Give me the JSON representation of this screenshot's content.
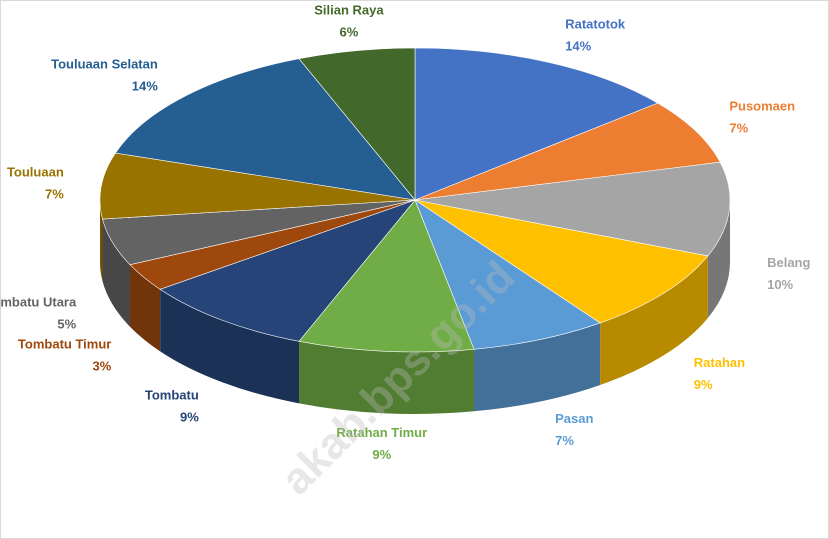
{
  "chart_data": {
    "type": "pie3d",
    "categories": [
      "Ratatotok",
      "Pusomaen",
      "Belang",
      "Ratahan",
      "Pasan",
      "Ratahan Timur",
      "Tombatu",
      "Tombatu Timur",
      "Tombatu Utara",
      "Touluaan",
      "Touluaan Selatan",
      "Silian Raya"
    ],
    "values": [
      14,
      7,
      10,
      9,
      7,
      9,
      9,
      3,
      5,
      7,
      14,
      6
    ],
    "value_labels": [
      "14%",
      "7%",
      "10%",
      "9%",
      "7%",
      "9%",
      "9%",
      "3%",
      "5%",
      "7%",
      "14%",
      "6%"
    ],
    "colors": [
      "#4472c4",
      "#ed7d31",
      "#a5a5a5",
      "#ffc000",
      "#5b9bd5",
      "#70ad47",
      "#264478",
      "#9e480e",
      "#636363",
      "#997300",
      "#255e91",
      "#43682b"
    ],
    "watermark": "akab.bps.go.id"
  }
}
